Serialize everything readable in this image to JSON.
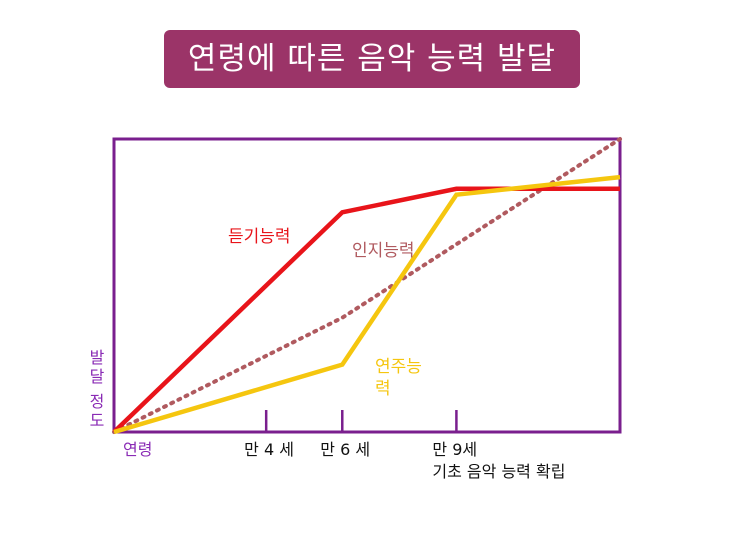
{
  "title": "연령에 따른 음악 능력 발달",
  "colors": {
    "title_bg": "#9b3468",
    "frame": "#7a1f8e",
    "listening": "#e8141a",
    "cognitive": "#b05a5f",
    "performance": "#f5c60f",
    "axis_label": "#8a2bb5"
  },
  "chart_data": {
    "type": "line",
    "xlabel": "연령",
    "ylabel_lines": [
      "발달",
      "정도"
    ],
    "ticks": [
      {
        "age": 4,
        "label": "만 4 세"
      },
      {
        "age": 6,
        "label": "만 6 세"
      },
      {
        "age": 9,
        "label": "만 9세",
        "sublabel": "기초 음악 능력 확립"
      }
    ],
    "xlim": [
      0,
      13.3
    ],
    "ylim": [
      0,
      100
    ],
    "series": [
      {
        "name": "듣기능력",
        "style": "solid",
        "points": [
          [
            0,
            0
          ],
          [
            4,
            50
          ],
          [
            6,
            75
          ],
          [
            9,
            83
          ],
          [
            13.3,
            83
          ]
        ]
      },
      {
        "name": "인지능력",
        "style": "dotted",
        "points": [
          [
            0,
            0
          ],
          [
            6,
            39
          ],
          [
            13.3,
            100
          ]
        ]
      },
      {
        "name": "연주능",
        "name2": "력",
        "style": "solid",
        "points": [
          [
            0,
            0
          ],
          [
            6,
            23
          ],
          [
            9,
            81
          ],
          [
            13.3,
            87
          ]
        ]
      }
    ]
  }
}
